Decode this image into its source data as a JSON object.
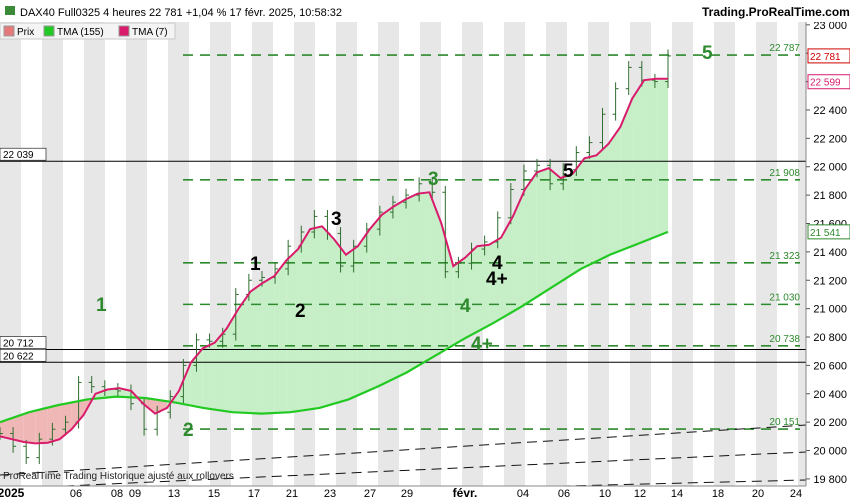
{
  "header": {
    "title": "DAX40 Full0325 4 heures 22 781 +1,04 % 17 févr. 2025, 10:58:32",
    "brand": "Trading.ProRealTime.com"
  },
  "legend": [
    {
      "label": "Prix",
      "color": "#e67a7a"
    },
    {
      "label": "TMA (155)",
      "color": "#22c922"
    },
    {
      "label": "TMA (7)",
      "color": "#d81b6b"
    }
  ],
  "footer": {
    "note": "ProRealTime Trading  Historique ajusté aux rollovers"
  },
  "chart_data": {
    "type": "line",
    "y_axis": {
      "range": [
        19750,
        23020
      ],
      "ticks": [
        "23 000",
        "22 800",
        "22 600",
        "22 400",
        "22 200",
        "22 000",
        "21 800",
        "21 600",
        "21 400",
        "21 200",
        "21 000",
        "20 800",
        "20 600",
        "20 400",
        "20 200",
        "20 000",
        "19 800"
      ],
      "position": "right"
    },
    "x_axis": {
      "ticks": [
        "2025",
        "06",
        "08",
        "09",
        "13",
        "15",
        "17",
        "21",
        "23",
        "27",
        "29",
        "févr.",
        "04",
        "06",
        "10",
        "12",
        "14",
        "18",
        "20",
        "24"
      ]
    },
    "grid": true,
    "left_price_labels": [
      "22 039",
      "20 712",
      "20 622"
    ],
    "left_price_values": [
      22039,
      20712,
      20622
    ],
    "level_lines": [
      {
        "value": 22787,
        "label": "22 787"
      },
      {
        "value": 21908,
        "label": "21 908"
      },
      {
        "value": 21541,
        "label": "21 541"
      },
      {
        "value": 21323,
        "label": "21 323"
      },
      {
        "value": 21030,
        "label": "21 030"
      },
      {
        "value": 20738,
        "label": "20 738"
      },
      {
        "value": 20151,
        "label": "20 151"
      }
    ],
    "price_tags": [
      {
        "value": 22781,
        "label": "22 781"
      },
      {
        "value": 22599,
        "label": "22 599"
      },
      {
        "value": 21541,
        "label": "21 541"
      }
    ],
    "green_wave_labels": [
      "1",
      "2",
      "3",
      "4",
      "4+",
      "5"
    ],
    "black_wave_labels": [
      "1",
      "2",
      "3",
      "4",
      "4+",
      "5"
    ],
    "series": [
      {
        "name": "TMA (7)",
        "color": "#d81b6b",
        "values": [
          20100,
          20080,
          20060,
          20050,
          20055,
          20080,
          20150,
          20250,
          20400,
          20430,
          20440,
          20420,
          20330,
          20260,
          20300,
          20420,
          20620,
          20720,
          20760,
          20860,
          21000,
          21120,
          21180,
          21230,
          21340,
          21420,
          21560,
          21580,
          21490,
          21380,
          21440,
          21560,
          21660,
          21720,
          21770,
          21810,
          21820,
          21600,
          21300,
          21360,
          21440,
          21450,
          21500,
          21650,
          21840,
          21960,
          21990,
          21920,
          21950,
          22060,
          22080,
          22160,
          22280,
          22480,
          22610,
          22620,
          22620
        ]
      },
      {
        "name": "TMA (155)",
        "color": "#22c922",
        "values": [
          20200,
          20270,
          20320,
          20360,
          20380,
          20370,
          20340,
          20300,
          20270,
          20260,
          20270,
          20300,
          20360,
          20450,
          20550,
          20670,
          20790,
          20900,
          21020,
          21150,
          21280,
          21380,
          21460,
          21541
        ]
      },
      {
        "name": "Prix",
        "color": "#3a8a3a",
        "values": [
          20120,
          20030,
          19950,
          20080,
          20150,
          20200,
          20480,
          20450,
          20430,
          20420,
          20330,
          20150,
          20270,
          20380,
          20600,
          20780,
          20770,
          20820,
          21100,
          21200,
          21220,
          21280,
          21440,
          21540,
          21650,
          21530,
          21300,
          21440,
          21560,
          21680,
          21750,
          21800,
          21880,
          21820,
          21260,
          21320,
          21420,
          21470,
          21640,
          21840,
          21970,
          22010,
          21880,
          21980,
          22100,
          22170,
          22370,
          22550,
          22700,
          22610,
          22600,
          22781
        ]
      }
    ]
  }
}
